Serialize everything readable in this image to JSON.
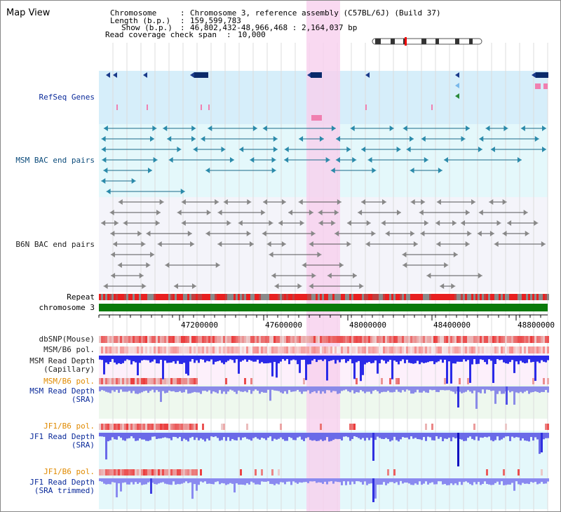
{
  "title": "Map View",
  "header": {
    "chromosome_label": "Chromosome",
    "chromosome_value": "Chromosome 3, reference assembly (C57BL/6J) (Build 37)",
    "length_label": "Length (b.p.)",
    "length_value": "159,599,783",
    "show_label": "Show (b.p.)",
    "show_value": "46,802,432-48,966,468 : 2,164,037 bp",
    "coverage_label": "Read coverage check span",
    "coverage_value": "10,000"
  },
  "tracks": {
    "refseq": "RefSeq Genes",
    "msm_bac": "MSM BAC end pairs",
    "b6n_bac": "B6N BAC end pairs",
    "repeat": "Repeat",
    "chromosome": "chromosome 3",
    "dbsnp": "dbSNP(Mouse)",
    "msm_b6_pol_1": "MSM/B6 pol.",
    "msm_depth_cap_1": "MSM Read Depth",
    "msm_depth_cap_2": "(Capillary)",
    "msm_b6_pol_2": "MSM/B6 pol.",
    "msm_depth_sra_1": "MSM Read Depth",
    "msm_depth_sra_2": "(SRA)",
    "jf1_b6_pol_1": "JF1/B6 pol.",
    "jf1_depth_sra_1": "JF1 Read Depth",
    "jf1_depth_sra_2": "(SRA)",
    "jf1_b6_pol_2": "JF1/B6 pol.",
    "jf1_depth_trim_1": "JF1 Read Depth",
    "jf1_depth_trim_2": "(SRA trimmed)"
  },
  "axis": {
    "ticks": [
      "47200000",
      "47600000",
      "48000000",
      "48400000",
      "48800000"
    ]
  },
  "colors": {
    "highlight": "#f8d0ee",
    "refseq_bg": "#d6eefa",
    "msm_bac_bg": "#e4f8fb",
    "b6n_bac_bg": "#f4f4fa",
    "chromosome": "#0a7a0a",
    "repeat_red": "#e82020",
    "depth_blue": "#2a2ae8",
    "label_blue": "#0a2a9a",
    "label_orange": "#e08a00"
  }
}
